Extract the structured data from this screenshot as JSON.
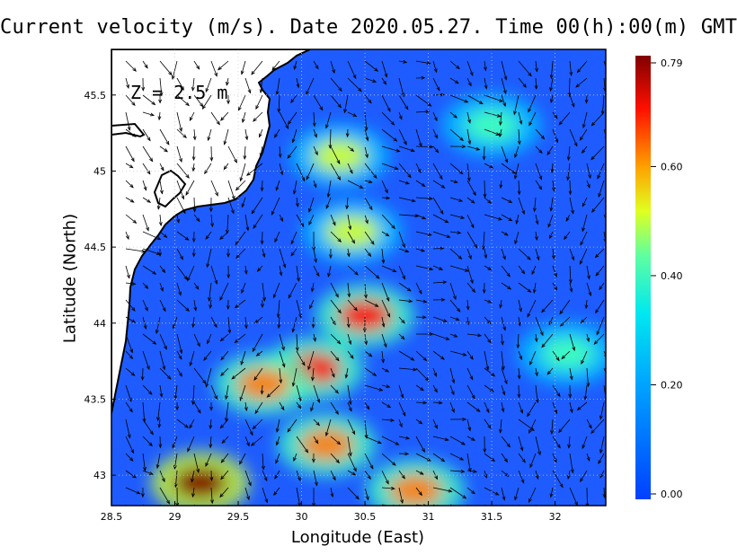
{
  "title": "Current velocity (m/s). Date 2020.05.27. Time 00(h):00(m) GMT",
  "depth_label": "Z = 2.5 m",
  "x_axis": {
    "label": "Longitude (East)",
    "range": [
      28.5,
      32.4
    ],
    "ticks": [
      "28.5",
      "29",
      "29.5",
      "30",
      "30.5",
      "31",
      "31.5",
      "32"
    ]
  },
  "y_axis": {
    "label": "Latitude (North)",
    "range": [
      42.8,
      45.8
    ],
    "ticks": [
      "43",
      "43.5",
      "44",
      "44.5",
      "45",
      "45.5"
    ]
  },
  "colorbar": {
    "min": 0.0,
    "max": 0.79,
    "tick_labels": [
      "0.79",
      "0.60",
      "0.40",
      "0.20",
      "0.00"
    ],
    "colors": [
      "#0040ff",
      "#00c8ff",
      "#40ffc0",
      "#d0ff30",
      "#ff8000",
      "#ff0000",
      "#800000"
    ]
  },
  "map": {
    "land_color": "#ffffff",
    "sea_base_color": "#1e5cff",
    "coastline_color": "#000000",
    "grid": "dotted",
    "high_speed_areas": [
      {
        "lon": 30.5,
        "lat": 44.05,
        "speed": 0.7
      },
      {
        "lon": 30.1,
        "lat": 43.7,
        "speed": 0.65
      },
      {
        "lon": 29.7,
        "lat": 43.6,
        "speed": 0.5
      },
      {
        "lon": 29.2,
        "lat": 42.95,
        "speed": 0.75
      },
      {
        "lon": 30.9,
        "lat": 42.9,
        "speed": 0.55
      },
      {
        "lon": 30.2,
        "lat": 43.2,
        "speed": 0.5
      },
      {
        "lon": 30.4,
        "lat": 44.6,
        "speed": 0.4
      },
      {
        "lon": 30.3,
        "lat": 45.1,
        "speed": 0.35
      },
      {
        "lon": 31.5,
        "lat": 45.3,
        "speed": 0.3
      },
      {
        "lon": 32.1,
        "lat": 43.8,
        "speed": 0.3
      }
    ]
  }
}
